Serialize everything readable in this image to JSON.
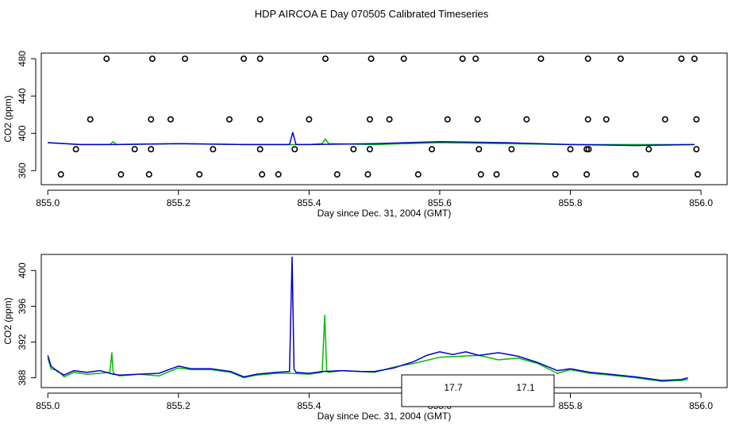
{
  "title": "HDP AIRCOA E  Day 070505  Calibrated Timeseries",
  "colors": {
    "blue": "#0000cc",
    "green": "#00bb00",
    "axis": "#000000"
  },
  "chart_data": [
    {
      "type": "line",
      "xlabel": "Day since Dec. 31, 2004 (GMT)",
      "ylabel": "CO2 (ppm)",
      "xlim": [
        854.99,
        856.04
      ],
      "ylim": [
        345,
        486
      ],
      "xticks": [
        855.0,
        855.2,
        855.4,
        855.6,
        855.8,
        856.0
      ],
      "xtick_labels": [
        "855.0",
        "855.2",
        "855.4",
        "855.6",
        "855.8",
        "856.0"
      ],
      "yticks": [
        360,
        400,
        440,
        480
      ],
      "ytick_labels": [
        "360",
        "400",
        "440",
        "480"
      ],
      "grid": false,
      "series": [
        {
          "color": "#00bb00",
          "x": [
            855.0,
            855.05,
            855.095,
            855.1,
            855.105,
            855.2,
            855.3,
            855.4,
            855.42,
            855.425,
            855.43,
            855.5,
            855.6,
            855.7,
            855.8,
            855.99
          ],
          "y": [
            390,
            388,
            388,
            391,
            388,
            389,
            388,
            388,
            389,
            394,
            389,
            388,
            390,
            389,
            388,
            388
          ]
        },
        {
          "color": "#0000cc",
          "x": [
            855.0,
            855.05,
            855.1,
            855.2,
            855.3,
            855.37,
            855.375,
            855.38,
            855.4,
            855.5,
            855.6,
            855.7,
            855.8,
            855.9,
            855.99
          ],
          "y": [
            390,
            388,
            388,
            389,
            388,
            388,
            401,
            388,
            388,
            389,
            391,
            390,
            388,
            387,
            388
          ]
        },
        {
          "type": "scatter",
          "marker": "open-circle",
          "x": [
            855.09,
            855.16,
            855.21,
            855.3,
            855.325,
            855.425,
            855.495,
            855.545,
            855.635,
            855.655,
            855.755,
            855.827,
            855.877,
            855.97,
            855.99,
            855.065,
            855.158,
            855.188,
            855.278,
            855.325,
            855.4,
            855.493,
            855.523,
            855.612,
            855.658,
            855.733,
            855.827,
            855.855,
            855.945,
            855.993,
            855.043,
            855.133,
            855.158,
            855.253,
            855.325,
            855.378,
            855.468,
            855.493,
            855.588,
            855.66,
            855.71,
            855.8,
            855.825,
            855.828,
            855.92,
            855.993,
            855.02,
            855.112,
            855.155,
            855.232,
            855.328,
            855.353,
            855.443,
            855.49,
            855.567,
            855.663,
            855.687,
            855.777,
            855.825,
            855.9,
            855.995
          ],
          "y": [
            480,
            480,
            480,
            480,
            480,
            480,
            480,
            480,
            480,
            480,
            480,
            480,
            480,
            480,
            480,
            415,
            415,
            415,
            415,
            415,
            415,
            415,
            415,
            415,
            415,
            415,
            415,
            415,
            415,
            415,
            383,
            383,
            383,
            383,
            383,
            383,
            383,
            383,
            383,
            383,
            383,
            383,
            383,
            383,
            383,
            383,
            356,
            356,
            356,
            356,
            356,
            356,
            356,
            356,
            356,
            356,
            356,
            356,
            356,
            356,
            356
          ]
        }
      ]
    },
    {
      "type": "line",
      "xlabel": "Day since Dec. 31, 2004 (GMT)",
      "ylabel": "CO2 (ppm)",
      "xlim": [
        854.99,
        856.04
      ],
      "ylim": [
        386.9,
        401.8
      ],
      "xticks": [
        855.0,
        855.2,
        855.4,
        855.6,
        855.8,
        856.0
      ],
      "xtick_labels": [
        "855.0",
        "855.2",
        "855.4",
        "855.6",
        "855.8",
        "856.0"
      ],
      "yticks": [
        388,
        392,
        396,
        400
      ],
      "ytick_labels": [
        "388",
        "392",
        "396",
        "400"
      ],
      "grid": false,
      "series": [
        {
          "color": "#00bb00",
          "x": [
            855.0,
            855.005,
            855.015,
            855.025,
            855.04,
            855.06,
            855.08,
            855.095,
            855.098,
            855.1,
            855.103,
            855.11,
            855.14,
            855.17,
            855.2,
            855.22,
            855.25,
            855.28,
            855.3,
            855.32,
            855.35,
            855.37,
            855.4,
            855.42,
            855.424,
            855.427,
            855.43,
            855.45,
            855.48,
            855.5,
            855.53,
            855.56,
            855.6,
            855.63,
            855.66,
            855.69,
            855.72,
            855.75,
            855.78,
            855.8,
            855.83,
            855.86,
            855.9,
            855.94,
            855.97,
            855.98
          ],
          "y": [
            390.2,
            389.0,
            388.8,
            388.1,
            388.6,
            388.4,
            388.5,
            388.6,
            390.8,
            388.6,
            388.4,
            388.2,
            388.4,
            388.2,
            389.1,
            388.9,
            388.9,
            388.6,
            388.0,
            388.3,
            388.5,
            388.5,
            388.4,
            388.6,
            395.0,
            388.7,
            388.6,
            388.8,
            388.7,
            388.6,
            389.2,
            389.6,
            390.3,
            390.4,
            390.5,
            390.0,
            390.2,
            389.6,
            388.5,
            388.9,
            388.5,
            388.3,
            388.0,
            387.6,
            387.7,
            387.8
          ]
        },
        {
          "color": "#0000cc",
          "x": [
            855.0,
            855.005,
            855.015,
            855.025,
            855.04,
            855.06,
            855.08,
            855.1,
            855.11,
            855.14,
            855.17,
            855.2,
            855.22,
            855.25,
            855.28,
            855.3,
            855.32,
            855.35,
            855.37,
            855.374,
            855.377,
            855.38,
            855.4,
            855.42,
            855.45,
            855.48,
            855.5,
            855.53,
            855.56,
            855.58,
            855.6,
            855.62,
            855.64,
            855.66,
            855.69,
            855.72,
            855.75,
            855.78,
            855.8,
            855.83,
            855.86,
            855.9,
            855.94,
            855.97,
            855.98
          ],
          "y": [
            390.5,
            389.3,
            388.7,
            388.3,
            388.8,
            388.6,
            388.8,
            388.4,
            388.3,
            388.4,
            388.5,
            389.3,
            389.0,
            389.0,
            388.7,
            388.1,
            388.4,
            388.6,
            388.7,
            401.5,
            389.0,
            388.6,
            388.5,
            388.7,
            388.8,
            388.7,
            388.7,
            389.1,
            389.8,
            390.5,
            390.9,
            390.6,
            390.9,
            390.5,
            390.8,
            390.4,
            389.7,
            388.8,
            389.0,
            388.6,
            388.4,
            388.1,
            387.7,
            387.8,
            388.0
          ]
        }
      ]
    }
  ],
  "legend_box": {
    "labels": [
      "17.7",
      "17.1"
    ]
  }
}
